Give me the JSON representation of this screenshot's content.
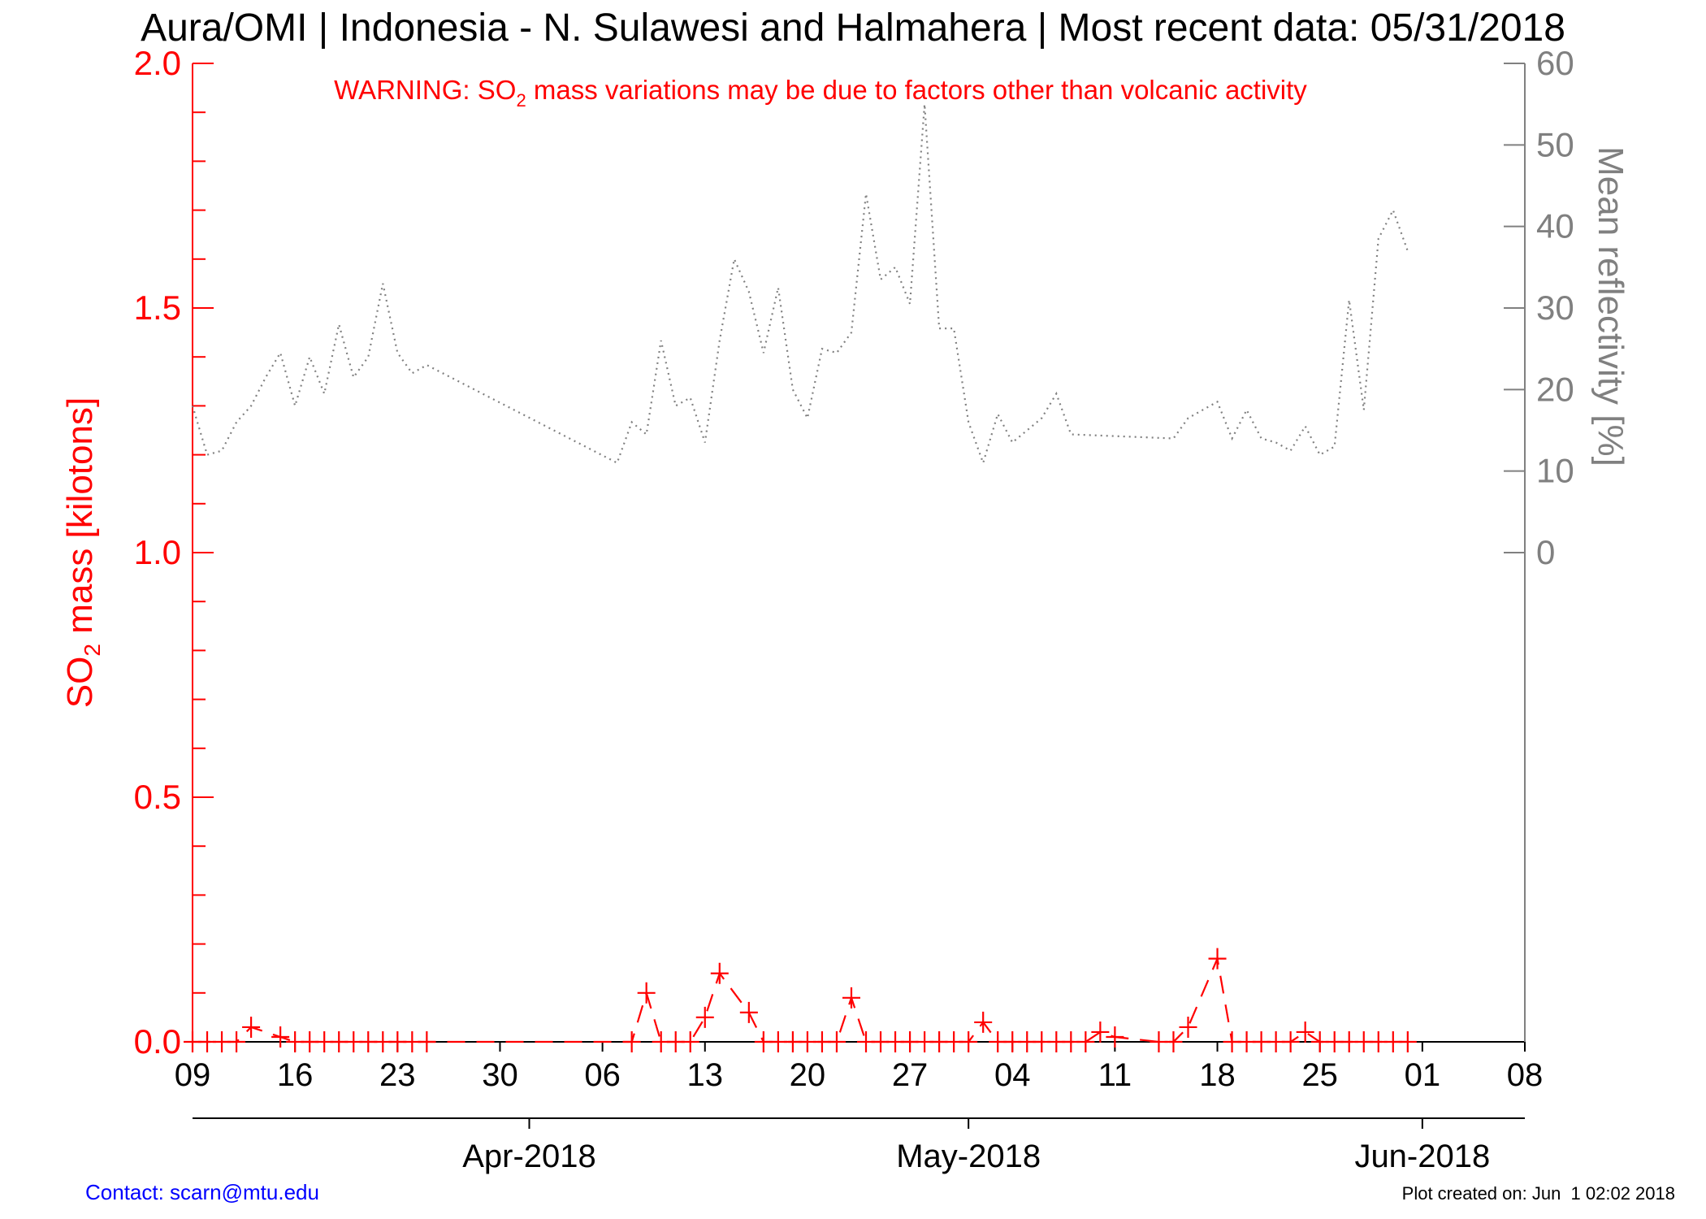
{
  "header": {
    "title": "Aura/OMI | Indonesia - N. Sulawesi and Halmahera | Most recent data: 05/31/2018"
  },
  "warning": {
    "prefix": "WARNING: SO",
    "subscript": "2",
    "suffix": " mass variations may be due to factors other than volcanic activity"
  },
  "footer": {
    "contact": "Contact: scarn@mtu.edu",
    "created": "Plot created on: Jun  1 02:02 2018"
  },
  "colors": {
    "so2": "#ff0000",
    "reflectivity": "#808080",
    "axis": "#000000",
    "contact": "#0000ff"
  },
  "chart_data": {
    "type": "line",
    "xlim": [
      "2018-03-09",
      "2018-06-08"
    ],
    "x_tick_labels": [
      {
        "date": "2018-03-09",
        "label": "09"
      },
      {
        "date": "2018-03-16",
        "label": "16"
      },
      {
        "date": "2018-03-23",
        "label": "23"
      },
      {
        "date": "2018-03-30",
        "label": "30"
      },
      {
        "date": "2018-04-06",
        "label": "06"
      },
      {
        "date": "2018-04-13",
        "label": "13"
      },
      {
        "date": "2018-04-20",
        "label": "20"
      },
      {
        "date": "2018-04-27",
        "label": "27"
      },
      {
        "date": "2018-05-04",
        "label": "04"
      },
      {
        "date": "2018-05-11",
        "label": "11"
      },
      {
        "date": "2018-05-18",
        "label": "18"
      },
      {
        "date": "2018-05-25",
        "label": "25"
      },
      {
        "date": "2018-06-01",
        "label": "01"
      },
      {
        "date": "2018-06-08",
        "label": "08"
      }
    ],
    "month_labels": [
      {
        "date": "2018-04-01",
        "label": "Apr-2018"
      },
      {
        "date": "2018-05-01",
        "label": "May-2018"
      },
      {
        "date": "2018-06-01",
        "label": "Jun-2018"
      }
    ],
    "y_left": {
      "label_prefix": "SO",
      "label_subscript": "2",
      "label_suffix": " mass [kilotons]",
      "lim": [
        0,
        2.0
      ],
      "tick_labels": [
        "0.0",
        "0.5",
        "1.0",
        "1.5",
        "2.0"
      ],
      "minor_step": 0.1
    },
    "y_right": {
      "label": "Mean reflectivity [%]",
      "lim": [
        -60,
        60
      ],
      "tick_values": [
        0,
        10,
        20,
        30,
        40,
        50,
        60
      ],
      "tick_labels": [
        "0",
        "10",
        "20",
        "30",
        "40",
        "50",
        "60"
      ]
    },
    "series": [
      {
        "key": "so2",
        "axis": "left",
        "style": "dashed-plus",
        "points": [
          [
            "2018-03-09",
            0.0
          ],
          [
            "2018-03-10",
            0.0
          ],
          [
            "2018-03-11",
            0.0
          ],
          [
            "2018-03-12",
            0.0
          ],
          [
            "2018-03-13",
            0.03
          ],
          [
            "2018-03-15",
            0.01
          ],
          [
            "2018-03-16",
            0.0
          ],
          [
            "2018-03-17",
            0.0
          ],
          [
            "2018-03-18",
            0.0
          ],
          [
            "2018-03-19",
            0.0
          ],
          [
            "2018-03-20",
            0.0
          ],
          [
            "2018-03-21",
            0.0
          ],
          [
            "2018-03-22",
            0.0
          ],
          [
            "2018-03-23",
            0.0
          ],
          [
            "2018-03-24",
            0.0
          ],
          [
            "2018-03-25",
            0.0
          ],
          [
            "2018-04-08",
            0.0
          ],
          [
            "2018-04-09",
            0.1
          ],
          [
            "2018-04-10",
            0.0
          ],
          [
            "2018-04-11",
            0.0
          ],
          [
            "2018-04-12",
            0.0
          ],
          [
            "2018-04-13",
            0.05
          ],
          [
            "2018-04-14",
            0.14
          ],
          [
            "2018-04-16",
            0.06
          ],
          [
            "2018-04-17",
            0.0
          ],
          [
            "2018-04-18",
            0.0
          ],
          [
            "2018-04-19",
            0.0
          ],
          [
            "2018-04-20",
            0.0
          ],
          [
            "2018-04-21",
            0.0
          ],
          [
            "2018-04-22",
            0.0
          ],
          [
            "2018-04-23",
            0.09
          ],
          [
            "2018-04-24",
            0.0
          ],
          [
            "2018-04-25",
            0.0
          ],
          [
            "2018-04-26",
            0.0
          ],
          [
            "2018-04-27",
            0.0
          ],
          [
            "2018-04-28",
            0.0
          ],
          [
            "2018-04-29",
            0.0
          ],
          [
            "2018-04-30",
            0.0
          ],
          [
            "2018-05-01",
            0.0
          ],
          [
            "2018-05-02",
            0.04
          ],
          [
            "2018-05-03",
            0.0
          ],
          [
            "2018-05-04",
            0.0
          ],
          [
            "2018-05-05",
            0.0
          ],
          [
            "2018-05-06",
            0.0
          ],
          [
            "2018-05-07",
            0.0
          ],
          [
            "2018-05-08",
            0.0
          ],
          [
            "2018-05-09",
            0.0
          ],
          [
            "2018-05-10",
            0.02
          ],
          [
            "2018-05-11",
            0.01
          ],
          [
            "2018-05-14",
            0.0
          ],
          [
            "2018-05-15",
            0.0
          ],
          [
            "2018-05-16",
            0.03
          ],
          [
            "2018-05-18",
            0.17
          ],
          [
            "2018-05-19",
            0.0
          ],
          [
            "2018-05-20",
            0.0
          ],
          [
            "2018-05-21",
            0.0
          ],
          [
            "2018-05-22",
            0.0
          ],
          [
            "2018-05-23",
            0.0
          ],
          [
            "2018-05-24",
            0.02
          ],
          [
            "2018-05-25",
            0.0
          ],
          [
            "2018-05-26",
            0.0
          ],
          [
            "2018-05-27",
            0.0
          ],
          [
            "2018-05-28",
            0.0
          ],
          [
            "2018-05-29",
            0.0
          ],
          [
            "2018-05-30",
            0.0
          ],
          [
            "2018-05-31",
            0.0
          ]
        ]
      },
      {
        "key": "reflectivity",
        "axis": "right",
        "style": "dotted",
        "points": [
          [
            "2018-03-09",
            18
          ],
          [
            "2018-03-10",
            12
          ],
          [
            "2018-03-11",
            12.5
          ],
          [
            "2018-03-12",
            16
          ],
          [
            "2018-03-13",
            18
          ],
          [
            "2018-03-14",
            21.5
          ],
          [
            "2018-03-15",
            24.5
          ],
          [
            "2018-03-16",
            18
          ],
          [
            "2018-03-17",
            24
          ],
          [
            "2018-03-18",
            19.5
          ],
          [
            "2018-03-19",
            28
          ],
          [
            "2018-03-20",
            21.5
          ],
          [
            "2018-03-21",
            24
          ],
          [
            "2018-03-22",
            33
          ],
          [
            "2018-03-23",
            24.5
          ],
          [
            "2018-03-24",
            22
          ],
          [
            "2018-03-25",
            23
          ],
          [
            "2018-04-07",
            11
          ],
          [
            "2018-04-08",
            16
          ],
          [
            "2018-04-09",
            14.5
          ],
          [
            "2018-04-10",
            26
          ],
          [
            "2018-04-11",
            18
          ],
          [
            "2018-04-12",
            19
          ],
          [
            "2018-04-13",
            13.5
          ],
          [
            "2018-04-14",
            26
          ],
          [
            "2018-04-15",
            36
          ],
          [
            "2018-04-16",
            32
          ],
          [
            "2018-04-17",
            24.5
          ],
          [
            "2018-04-18",
            32.5
          ],
          [
            "2018-04-19",
            20
          ],
          [
            "2018-04-20",
            16.5
          ],
          [
            "2018-04-21",
            25
          ],
          [
            "2018-04-22",
            24.5
          ],
          [
            "2018-04-23",
            27
          ],
          [
            "2018-04-24",
            44
          ],
          [
            "2018-04-25",
            33.5
          ],
          [
            "2018-04-26",
            35
          ],
          [
            "2018-04-27",
            30.5
          ],
          [
            "2018-04-28",
            55
          ],
          [
            "2018-04-29",
            27.5
          ],
          [
            "2018-04-30",
            27.5
          ],
          [
            "2018-05-01",
            16
          ],
          [
            "2018-05-02",
            11
          ],
          [
            "2018-05-03",
            17
          ],
          [
            "2018-05-04",
            13.5
          ],
          [
            "2018-05-05",
            15
          ],
          [
            "2018-05-06",
            16.5
          ],
          [
            "2018-05-07",
            19.5
          ],
          [
            "2018-05-08",
            14.5
          ],
          [
            "2018-05-15",
            14
          ],
          [
            "2018-05-16",
            16.5
          ],
          [
            "2018-05-17",
            17.5
          ],
          [
            "2018-05-18",
            18.5
          ],
          [
            "2018-05-19",
            14
          ],
          [
            "2018-05-20",
            17.5
          ],
          [
            "2018-05-21",
            14
          ],
          [
            "2018-05-22",
            13.5
          ],
          [
            "2018-05-23",
            12.5
          ],
          [
            "2018-05-24",
            15.5
          ],
          [
            "2018-05-25",
            12
          ],
          [
            "2018-05-26",
            13
          ],
          [
            "2018-05-27",
            31
          ],
          [
            "2018-05-28",
            17.5
          ],
          [
            "2018-05-29",
            38.5
          ],
          [
            "2018-05-30",
            42
          ],
          [
            "2018-05-31",
            37
          ]
        ]
      }
    ]
  }
}
